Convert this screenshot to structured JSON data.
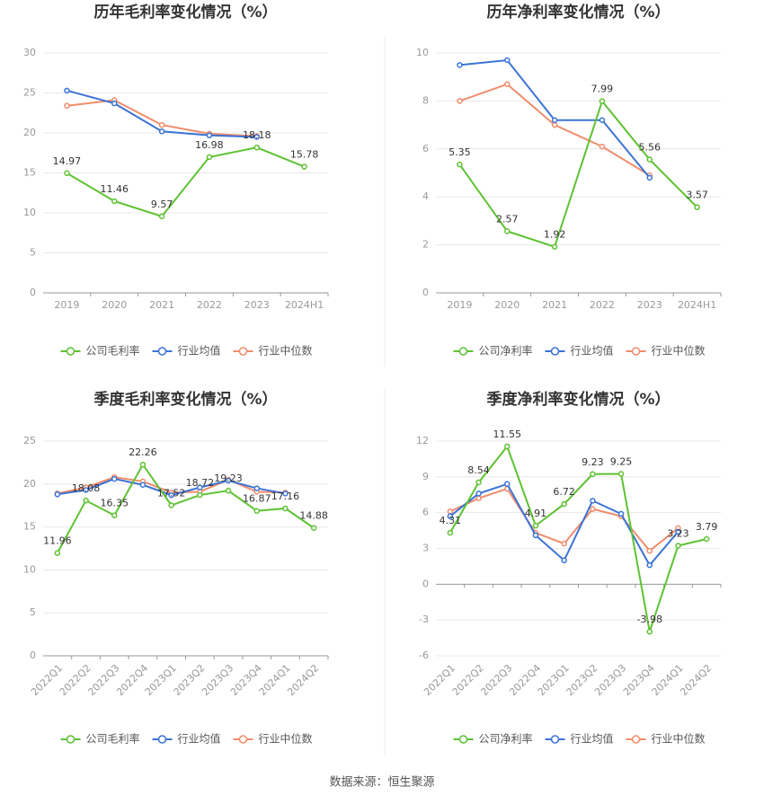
{
  "chart_data": [
    {
      "type": "line",
      "title": "历年毛利率变化情况（%）",
      "categories": [
        "2019",
        "2020",
        "2021",
        "2022",
        "2023",
        "2024H1"
      ],
      "series": [
        {
          "name": "公司毛利率",
          "color": "#5ec232",
          "values": [
            14.97,
            11.46,
            9.57,
            16.98,
            18.18,
            15.78
          ]
        },
        {
          "name": "行业均值",
          "color": "#3b73d6",
          "values": [
            25.3,
            23.7,
            20.2,
            19.7,
            19.5,
            null
          ]
        },
        {
          "name": "行业中位数",
          "color": "#f08c6a",
          "values": [
            23.4,
            24.1,
            21.0,
            19.9,
            19.6,
            null
          ]
        }
      ],
      "ylim": [
        0,
        30
      ],
      "yticks": [
        0,
        5,
        10,
        15,
        20,
        25,
        30
      ],
      "grid": true
    },
    {
      "type": "line",
      "title": "历年净利率变化情况（%）",
      "categories": [
        "2019",
        "2020",
        "2021",
        "2022",
        "2023",
        "2024H1"
      ],
      "series": [
        {
          "name": "公司净利率",
          "color": "#5ec232",
          "values": [
            5.35,
            2.57,
            1.92,
            7.99,
            5.56,
            3.57
          ]
        },
        {
          "name": "行业均值",
          "color": "#3b73d6",
          "values": [
            9.5,
            9.7,
            7.2,
            7.2,
            4.8,
            null
          ]
        },
        {
          "name": "行业中位数",
          "color": "#f08c6a",
          "values": [
            8.0,
            8.7,
            7.0,
            6.1,
            4.9,
            null
          ]
        }
      ],
      "ylim": [
        0,
        10
      ],
      "yticks": [
        0,
        2,
        4,
        6,
        8,
        10
      ],
      "grid": true
    },
    {
      "type": "line",
      "title": "季度毛利率变化情况（%）",
      "categories": [
        "2022Q1",
        "2022Q2",
        "2022Q3",
        "2022Q4",
        "2023Q1",
        "2023Q2",
        "2023Q3",
        "2023Q4",
        "2024Q1",
        "2024Q2"
      ],
      "series": [
        {
          "name": "公司毛利率",
          "color": "#5ec232",
          "values": [
            11.96,
            18.08,
            16.35,
            22.26,
            17.52,
            18.72,
            19.23,
            16.87,
            17.16,
            14.88
          ]
        },
        {
          "name": "行业均值",
          "color": "#3b73d6",
          "values": [
            18.8,
            19.3,
            20.6,
            19.9,
            18.7,
            19.6,
            20.4,
            19.5,
            18.9,
            null
          ]
        },
        {
          "name": "行业中位数",
          "color": "#f08c6a",
          "values": [
            18.9,
            19.6,
            20.8,
            20.3,
            19.0,
            19.1,
            20.5,
            19.1,
            19.0,
            null
          ]
        }
      ],
      "ylim": [
        0,
        25
      ],
      "yticks": [
        0,
        5,
        10,
        15,
        20,
        25
      ],
      "grid": true
    },
    {
      "type": "line",
      "title": "季度净利率变化情况（%）",
      "categories": [
        "2022Q1",
        "2022Q2",
        "2022Q3",
        "2022Q4",
        "2023Q1",
        "2023Q2",
        "2023Q3",
        "2023Q4",
        "2024Q1",
        "2024Q2"
      ],
      "series": [
        {
          "name": "公司净利率",
          "color": "#5ec232",
          "values": [
            4.31,
            8.54,
            11.55,
            4.91,
            6.72,
            9.23,
            9.25,
            -3.98,
            3.23,
            3.79
          ]
        },
        {
          "name": "行业均值",
          "color": "#3b73d6",
          "values": [
            5.7,
            7.6,
            8.4,
            4.1,
            2.0,
            7.0,
            5.9,
            1.6,
            4.4,
            null
          ]
        },
        {
          "name": "行业中位数",
          "color": "#f08c6a",
          "values": [
            6.1,
            7.2,
            8.0,
            4.3,
            3.4,
            6.3,
            5.7,
            2.8,
            4.7,
            null
          ]
        }
      ],
      "ylim": [
        -6,
        12
      ],
      "yticks": [
        -6,
        -3,
        0,
        3,
        6,
        9,
        12
      ],
      "grid": true
    }
  ],
  "source": "数据来源：恒生聚源"
}
